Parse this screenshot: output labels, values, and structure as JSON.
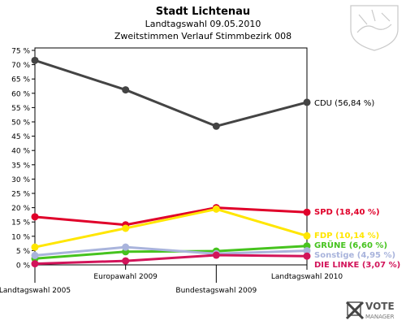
{
  "chart_data": {
    "type": "line",
    "title": "Stadt Lichtenau",
    "subtitle": "Landtagswahl 09.05.2010",
    "subtitle2": "Zweitstimmen Verlauf Stimmbezirk 008",
    "x": [
      "Landtagswahl 2005",
      "Europawahl 2009",
      "Bundestagswahl 2009",
      "Landtagswahl 2010"
    ],
    "ylim": [
      0,
      75
    ],
    "yticks": [
      0,
      5,
      10,
      15,
      20,
      25,
      30,
      35,
      40,
      45,
      50,
      55,
      60,
      65,
      70,
      75
    ],
    "ytick_suffix": " %",
    "grid": false,
    "series": [
      {
        "name": "CDU",
        "color": "#444444",
        "values": [
          71.5,
          61.2,
          48.5,
          56.84
        ],
        "label": "CDU (56,84 %)",
        "label_color": "#000000"
      },
      {
        "name": "SPD",
        "color": "#e0002a",
        "values": [
          16.8,
          14.0,
          20.0,
          18.4
        ],
        "label": "SPD (18,40 %)",
        "label_color": "#e0002a"
      },
      {
        "name": "FDP",
        "color": "#ffe600",
        "values": [
          6.2,
          12.8,
          19.5,
          10.14
        ],
        "label": "FDP (10,14 %)",
        "label_color": "#ffe600"
      },
      {
        "name": "GRÜNE",
        "color": "#46c31e",
        "values": [
          2.2,
          4.6,
          4.8,
          6.6
        ],
        "label": "GRÜNE (6,60 %)",
        "label_color": "#46c31e"
      },
      {
        "name": "Sonstige",
        "color": "#a9b4dc",
        "values": [
          3.3,
          6.2,
          3.9,
          4.95
        ],
        "label": "Sonstige (4,95 %)",
        "label_color": "#a9b4dc"
      },
      {
        "name": "DIE LINKE",
        "color": "#d2145a",
        "values": [
          0.4,
          1.4,
          3.4,
          3.07
        ],
        "label": "DIE LINKE (3,07 %)",
        "label_color": "#d2145a"
      }
    ]
  },
  "branding": {
    "logo_text_1": "VOTE",
    "logo_text_2": "MANAGER"
  }
}
